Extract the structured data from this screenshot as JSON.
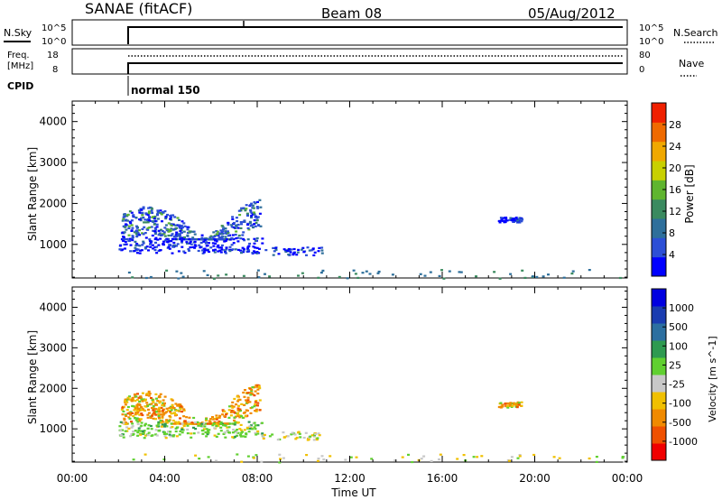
{
  "header": {
    "station": "SANAE (fitACF)",
    "beam": "Beam 08",
    "date": "05/Aug/2012"
  },
  "top_panels": {
    "nsky": {
      "label": "N.Sky",
      "ticks": [
        "10^5",
        "10^0"
      ]
    },
    "nsearch": {
      "label": "N.Search",
      "ticks": [
        "10^5",
        "10^0"
      ]
    },
    "freq": {
      "label_line1": "Freq.",
      "label_line2": "[MHz]",
      "ticks": [
        "18",
        "8"
      ]
    },
    "nave": {
      "label": "Nave",
      "ticks": [
        "80",
        "0"
      ]
    },
    "cpid": {
      "label": "CPID",
      "value": "normal 150"
    }
  },
  "colors": {
    "power": [
      "#0000ff",
      "#2c4fd6",
      "#2e6f9b",
      "#3a8a5f",
      "#5fb52f",
      "#c8d000",
      "#f0a800",
      "#ef6a00",
      "#f02000"
    ],
    "velocity": [
      "#f00000",
      "#ef5000",
      "#f08a00",
      "#f0c000",
      "#c8c8c8",
      "#60d030",
      "#2e9a50",
      "#2c6fa0",
      "#1a3cb0",
      "#0000e0"
    ],
    "frame": "#000000"
  },
  "chart_data": [
    {
      "type": "heatmap",
      "name": "power",
      "xlabel": "",
      "ylabel": "Slant Range [km]",
      "xlim": [
        0,
        24
      ],
      "ylim": [
        180,
        4500
      ],
      "yticks": [
        1000,
        2000,
        3000,
        4000
      ],
      "xticks": [
        "00:00",
        "04:00",
        "08:00",
        "12:00",
        "16:00",
        "20:00",
        "00:00"
      ],
      "colorbar_label": "Power [dB]",
      "colorbar_ticks": [
        "4",
        "8",
        "12",
        "16",
        "20",
        "24",
        "28"
      ],
      "colorbar_range": [
        0,
        31
      ],
      "scatter_regions": [
        {
          "t0": 2.1,
          "t1": 8.1,
          "r0": 1150,
          "r1": 2150,
          "level": "mixed"
        },
        {
          "t0": 2.0,
          "t1": 8.2,
          "r0": 800,
          "r1": 1200,
          "level": "low"
        },
        {
          "t0": 8.2,
          "t1": 10.8,
          "r0": 750,
          "r1": 950,
          "level": "low"
        },
        {
          "t0": 18.4,
          "t1": 19.4,
          "r0": 1550,
          "r1": 1680,
          "level": "low"
        },
        {
          "t0": 2.0,
          "t1": 24.0,
          "r0": 180,
          "r1": 400,
          "level": "sparse"
        }
      ]
    },
    {
      "type": "heatmap",
      "name": "velocity",
      "xlabel": "Time UT",
      "ylabel": "Slant Range [km]",
      "xlim": [
        0,
        24
      ],
      "ylim": [
        180,
        4500
      ],
      "yticks": [
        1000,
        2000,
        3000,
        4000
      ],
      "xticks": [
        "00:00",
        "04:00",
        "08:00",
        "12:00",
        "16:00",
        "20:00",
        "00:00"
      ],
      "colorbar_label": "Velocity [m s^-1]",
      "colorbar_ticks": [
        "-1000",
        "-500",
        "-100",
        "-25",
        "25",
        "100",
        "500",
        "1000"
      ],
      "scatter_regions": [
        {
          "t0": 2.1,
          "t1": 8.1,
          "r0": 1150,
          "r1": 2150,
          "level": "neg"
        },
        {
          "t0": 2.0,
          "t1": 8.2,
          "r0": 800,
          "r1": 1200,
          "level": "pos"
        },
        {
          "t0": 8.2,
          "t1": 10.8,
          "r0": 750,
          "r1": 950,
          "level": "near"
        },
        {
          "t0": 18.4,
          "t1": 19.4,
          "r0": 1550,
          "r1": 1680,
          "level": "neg"
        },
        {
          "t0": 2.0,
          "t1": 24.0,
          "r0": 180,
          "r1": 400,
          "level": "near"
        }
      ]
    }
  ]
}
